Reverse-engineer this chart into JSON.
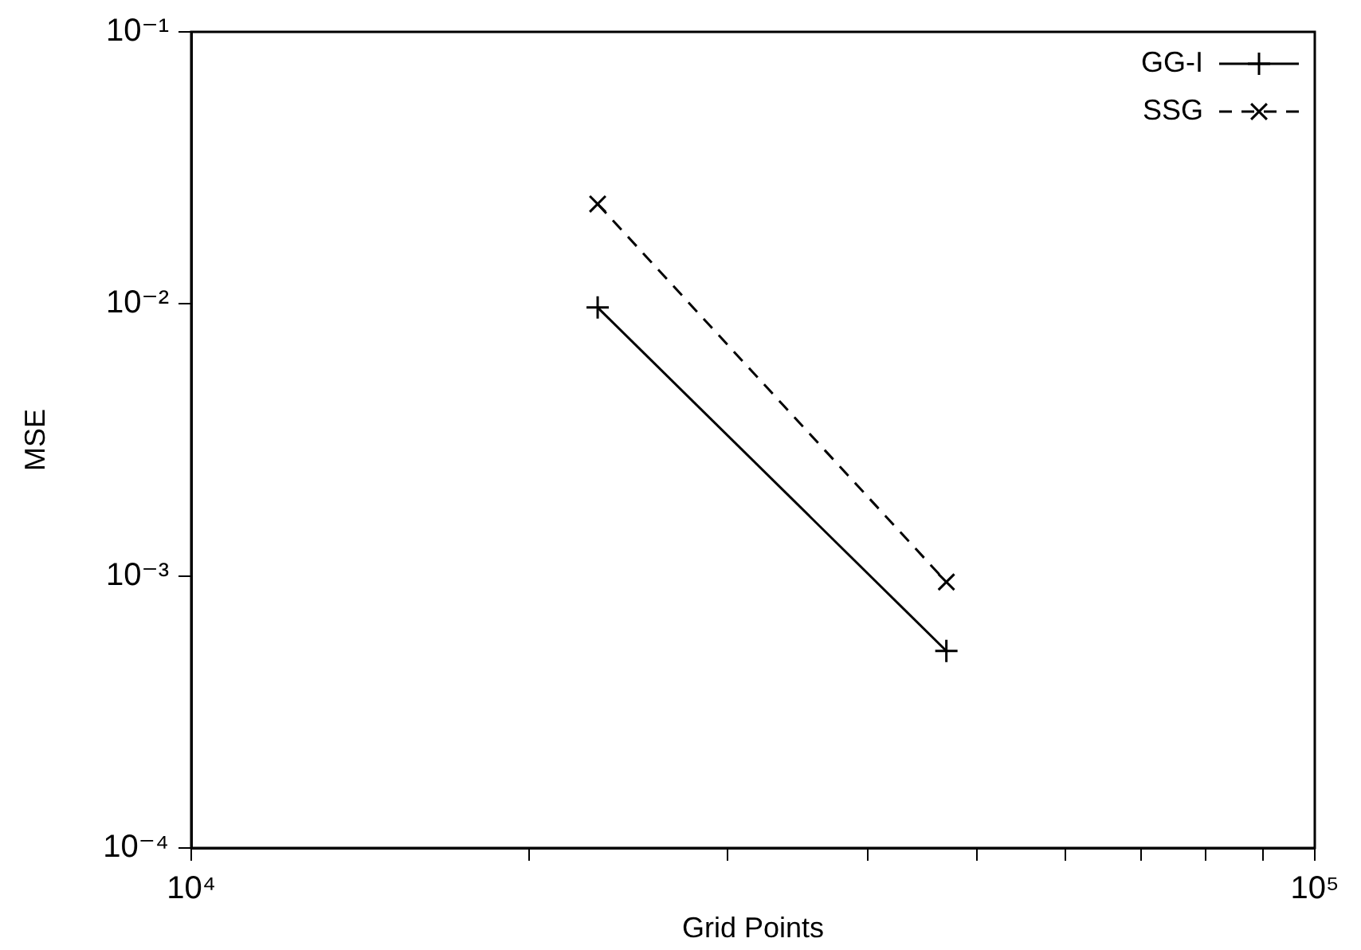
{
  "chart_data": {
    "type": "line",
    "xlabel": "Grid Points",
    "ylabel": "MSE",
    "log": "xy",
    "grid": false,
    "legend": "top right",
    "xlim": [
      10000,
      100000
    ],
    "ylim": [
      0.0001,
      0.1
    ],
    "xticks": [
      {
        "value": 10000,
        "label": "10⁴"
      },
      {
        "value": 20000,
        "label": null
      },
      {
        "value": 30000,
        "label": null
      },
      {
        "value": 40000,
        "label": null
      },
      {
        "value": 50000,
        "label": null
      },
      {
        "value": 60000,
        "label": null
      },
      {
        "value": 70000,
        "label": null
      },
      {
        "value": 80000,
        "label": null
      },
      {
        "value": 90000,
        "label": null
      },
      {
        "value": 100000,
        "label": "10⁵"
      }
    ],
    "yticks": [
      {
        "value": 0.0001,
        "label": "10⁻⁴"
      },
      {
        "value": 0.001,
        "label": "10⁻³"
      },
      {
        "value": 0.01,
        "label": "10⁻²"
      },
      {
        "value": 0.1,
        "label": "10⁻¹"
      }
    ],
    "x": [
      23000,
      47000
    ],
    "series": [
      {
        "name": "GG-I",
        "color": "#000000",
        "values": [
          0.0097,
          0.00053
        ],
        "marker": "cross",
        "line_style": "solid"
      },
      {
        "name": "SSG",
        "color": "#000000",
        "values": [
          0.0233,
          0.00095
        ],
        "marker": "x",
        "line_style": "dashed"
      }
    ]
  }
}
